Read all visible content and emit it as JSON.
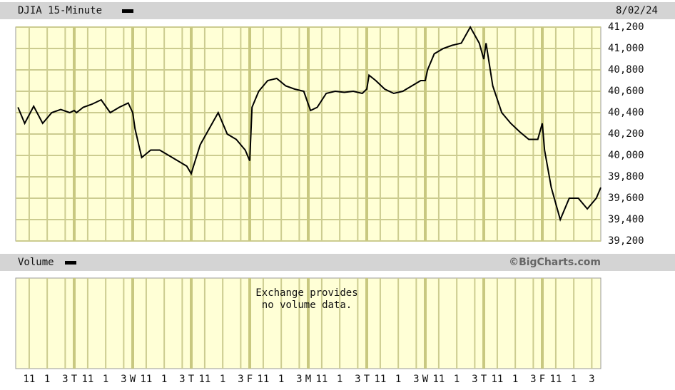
{
  "chart_data": {
    "type": "line",
    "title": "DJIA 15-Minute",
    "date": "8/02/24",
    "volume_title": "Volume",
    "copyright": "©BigCharts.com",
    "volume_note": [
      "Exchange provides",
      "no volume data."
    ],
    "series": [
      {
        "color": "#000000",
        "x": [
          0.25,
          1,
          2,
          3,
          4,
          5,
          6,
          6.5,
          6.75,
          7.5,
          8.5,
          9.5,
          10.5,
          11.5,
          12.5,
          13,
          13.25,
          14,
          15,
          16,
          17,
          18,
          19,
          19.5,
          19.75,
          20.5,
          21.5,
          22.5,
          23.5,
          24.5,
          25.5,
          26,
          26.25,
          27,
          28,
          29,
          30,
          31,
          32,
          32.5,
          32.75,
          33.5,
          34.5,
          35.5,
          36.5,
          37.5,
          38.5,
          39,
          39.25,
          40,
          41,
          42,
          43,
          44,
          45,
          45.5,
          45.75,
          46.5,
          47.5,
          48.5,
          49.5,
          50.5,
          51.5,
          52,
          52.25,
          53,
          54,
          55,
          56,
          57,
          58,
          58.5,
          58.75,
          59.5,
          60.5,
          61.5,
          62.5,
          63.5,
          64.5,
          65
        ],
        "values": [
          40450,
          40300,
          40460,
          40300,
          40400,
          40430,
          40400,
          40420,
          40400,
          40450,
          40480,
          40520,
          40400,
          40450,
          40490,
          40400,
          40250,
          39980,
          40050,
          40050,
          40000,
          39950,
          39900,
          39830,
          39900,
          40100,
          40250,
          40400,
          40200,
          40150,
          40050,
          39950,
          40450,
          40600,
          40700,
          40720,
          40650,
          40620,
          40600,
          40480,
          40420,
          40450,
          40580,
          40600,
          40590,
          40600,
          40580,
          40620,
          40750,
          40700,
          40620,
          40580,
          40600,
          40650,
          40700,
          40700,
          40800,
          40950,
          41000,
          41030,
          41050,
          41200,
          41050,
          40900,
          41050,
          40650,
          40400,
          40300,
          40220,
          40150,
          40150,
          40300,
          40050,
          39700,
          39400,
          39600,
          39600,
          39500,
          39600,
          39700
        ]
      }
    ],
    "xlim": [
      0,
      65
    ],
    "xticks": [
      {
        "value": 1.5,
        "label": "11"
      },
      {
        "value": 3.5,
        "label": "1"
      },
      {
        "value": 5.5,
        "label": "3"
      },
      {
        "value": 6.5,
        "label": "T"
      },
      {
        "value": 8,
        "label": "11"
      },
      {
        "value": 10,
        "label": "1"
      },
      {
        "value": 12,
        "label": "3"
      },
      {
        "value": 13,
        "label": "W"
      },
      {
        "value": 14.5,
        "label": "11"
      },
      {
        "value": 16.5,
        "label": "1"
      },
      {
        "value": 18.5,
        "label": "3"
      },
      {
        "value": 19.5,
        "label": "T"
      },
      {
        "value": 21,
        "label": "11"
      },
      {
        "value": 23,
        "label": "1"
      },
      {
        "value": 25,
        "label": "3"
      },
      {
        "value": 26,
        "label": "F"
      },
      {
        "value": 27.5,
        "label": "11"
      },
      {
        "value": 29.5,
        "label": "1"
      },
      {
        "value": 31.5,
        "label": "3"
      },
      {
        "value": 32.5,
        "label": "M"
      },
      {
        "value": 34,
        "label": "11"
      },
      {
        "value": 36,
        "label": "1"
      },
      {
        "value": 38,
        "label": "3"
      },
      {
        "value": 39,
        "label": "T"
      },
      {
        "value": 40.5,
        "label": "11"
      },
      {
        "value": 42.5,
        "label": "1"
      },
      {
        "value": 44.5,
        "label": "3"
      },
      {
        "value": 45.5,
        "label": "W"
      },
      {
        "value": 47,
        "label": "11"
      },
      {
        "value": 49,
        "label": "1"
      },
      {
        "value": 51,
        "label": "3"
      },
      {
        "value": 52,
        "label": "T"
      },
      {
        "value": 53.5,
        "label": "11"
      },
      {
        "value": 55.5,
        "label": "1"
      },
      {
        "value": 57.5,
        "label": "3"
      },
      {
        "value": 58.5,
        "label": "F"
      },
      {
        "value": 60,
        "label": "11"
      },
      {
        "value": 62,
        "label": "1"
      },
      {
        "value": 64,
        "label": "3"
      }
    ],
    "ylim": [
      39200,
      41200
    ],
    "yticks": [
      {
        "value": 39200,
        "label": "39,200"
      },
      {
        "value": 39400,
        "label": "39,400"
      },
      {
        "value": 39600,
        "label": "39,600"
      },
      {
        "value": 39800,
        "label": "39,800"
      },
      {
        "value": 40000,
        "label": "40,000"
      },
      {
        "value": 40200,
        "label": "40,200"
      },
      {
        "value": 40400,
        "label": "40,400"
      },
      {
        "value": 40600,
        "label": "40,600"
      },
      {
        "value": 40800,
        "label": "40,800"
      },
      {
        "value": 41000,
        "label": "41,000"
      },
      {
        "value": 41200,
        "label": "41,200"
      }
    ],
    "grid": true
  }
}
